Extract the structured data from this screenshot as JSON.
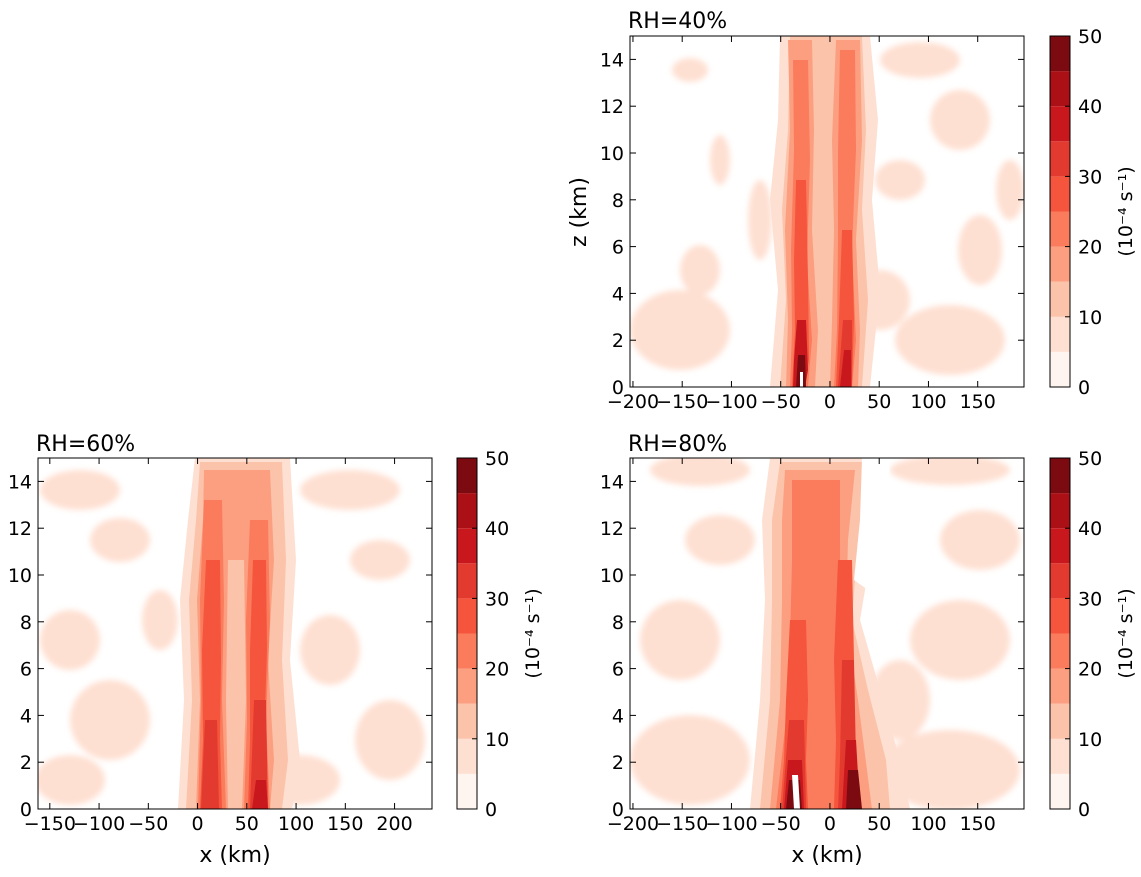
{
  "figure": {
    "panels": [
      {
        "id": "top-right",
        "title": "RH=40%",
        "ylabel": "z (km)",
        "xlabel": ""
      },
      {
        "id": "bottom-left",
        "title": "RH=60%",
        "ylabel": "",
        "xlabel": "x (km)"
      },
      {
        "id": "bottom-right",
        "title": "RH=80%",
        "ylabel": "",
        "xlabel": "x (km)"
      }
    ],
    "colorbar": {
      "label": "(10⁻⁴ s⁻¹)",
      "ticks": [
        "0",
        "10",
        "20",
        "30",
        "40",
        "50"
      ],
      "levels": [
        0,
        5,
        10,
        15,
        20,
        25,
        30,
        35,
        40,
        45,
        50
      ],
      "colors": [
        "#fff5f0",
        "#fee0d2",
        "#fcc3ab",
        "#fc9f81",
        "#fb7c5c",
        "#f5553c",
        "#e33a2f",
        "#c9181d",
        "#aa1016",
        "#7b0b10"
      ]
    }
  },
  "chart_data": [
    {
      "type": "heatmap",
      "title": "RH=40%",
      "xlabel": "",
      "ylabel": "z (km)",
      "xlim": [
        -203,
        197
      ],
      "ylim": [
        0,
        15
      ],
      "xticks": [
        -200,
        -150,
        -100,
        -50,
        0,
        50,
        100,
        150
      ],
      "yticks": [
        0,
        2,
        4,
        6,
        8,
        10,
        12,
        14
      ],
      "colorbar_label": "(10⁻⁴ s⁻¹)",
      "features": [
        {
          "x_center": -32,
          "z_range": [
            0,
            15
          ],
          "max_value_approx": 50
        },
        {
          "x_center": 18,
          "z_range": [
            0,
            15
          ],
          "max_value_approx": 45
        }
      ]
    },
    {
      "type": "heatmap",
      "title": "RH=60%",
      "xlabel": "x (km)",
      "ylabel": "",
      "xlim": [
        -162,
        238
      ],
      "ylim": [
        0,
        15
      ],
      "xticks": [
        -150,
        -100,
        -50,
        0,
        50,
        100,
        150,
        200
      ],
      "yticks": [
        0,
        2,
        4,
        6,
        8,
        10,
        12,
        14
      ],
      "colorbar_label": "(10⁻⁴ s⁻¹)",
      "features": [
        {
          "x_center": 12,
          "z_range": [
            0,
            15
          ],
          "max_value_approx": 40
        },
        {
          "x_center": 65,
          "z_range": [
            0,
            15
          ],
          "max_value_approx": 40
        }
      ]
    },
    {
      "type": "heatmap",
      "title": "RH=80%",
      "xlabel": "x (km)",
      "ylabel": "",
      "xlim": [
        -203,
        197
      ],
      "ylim": [
        0,
        15
      ],
      "xticks": [
        -200,
        -150,
        -100,
        -50,
        0,
        50,
        100,
        150
      ],
      "yticks": [
        0,
        2,
        4,
        6,
        8,
        10,
        12,
        14
      ],
      "colorbar_label": "(10⁻⁴ s⁻¹)",
      "features": [
        {
          "x_center": -38,
          "z_range": [
            0,
            15
          ],
          "max_value_approx": 50
        },
        {
          "x_center": 25,
          "z_range": [
            0,
            15
          ],
          "max_value_approx": 50
        }
      ]
    }
  ]
}
